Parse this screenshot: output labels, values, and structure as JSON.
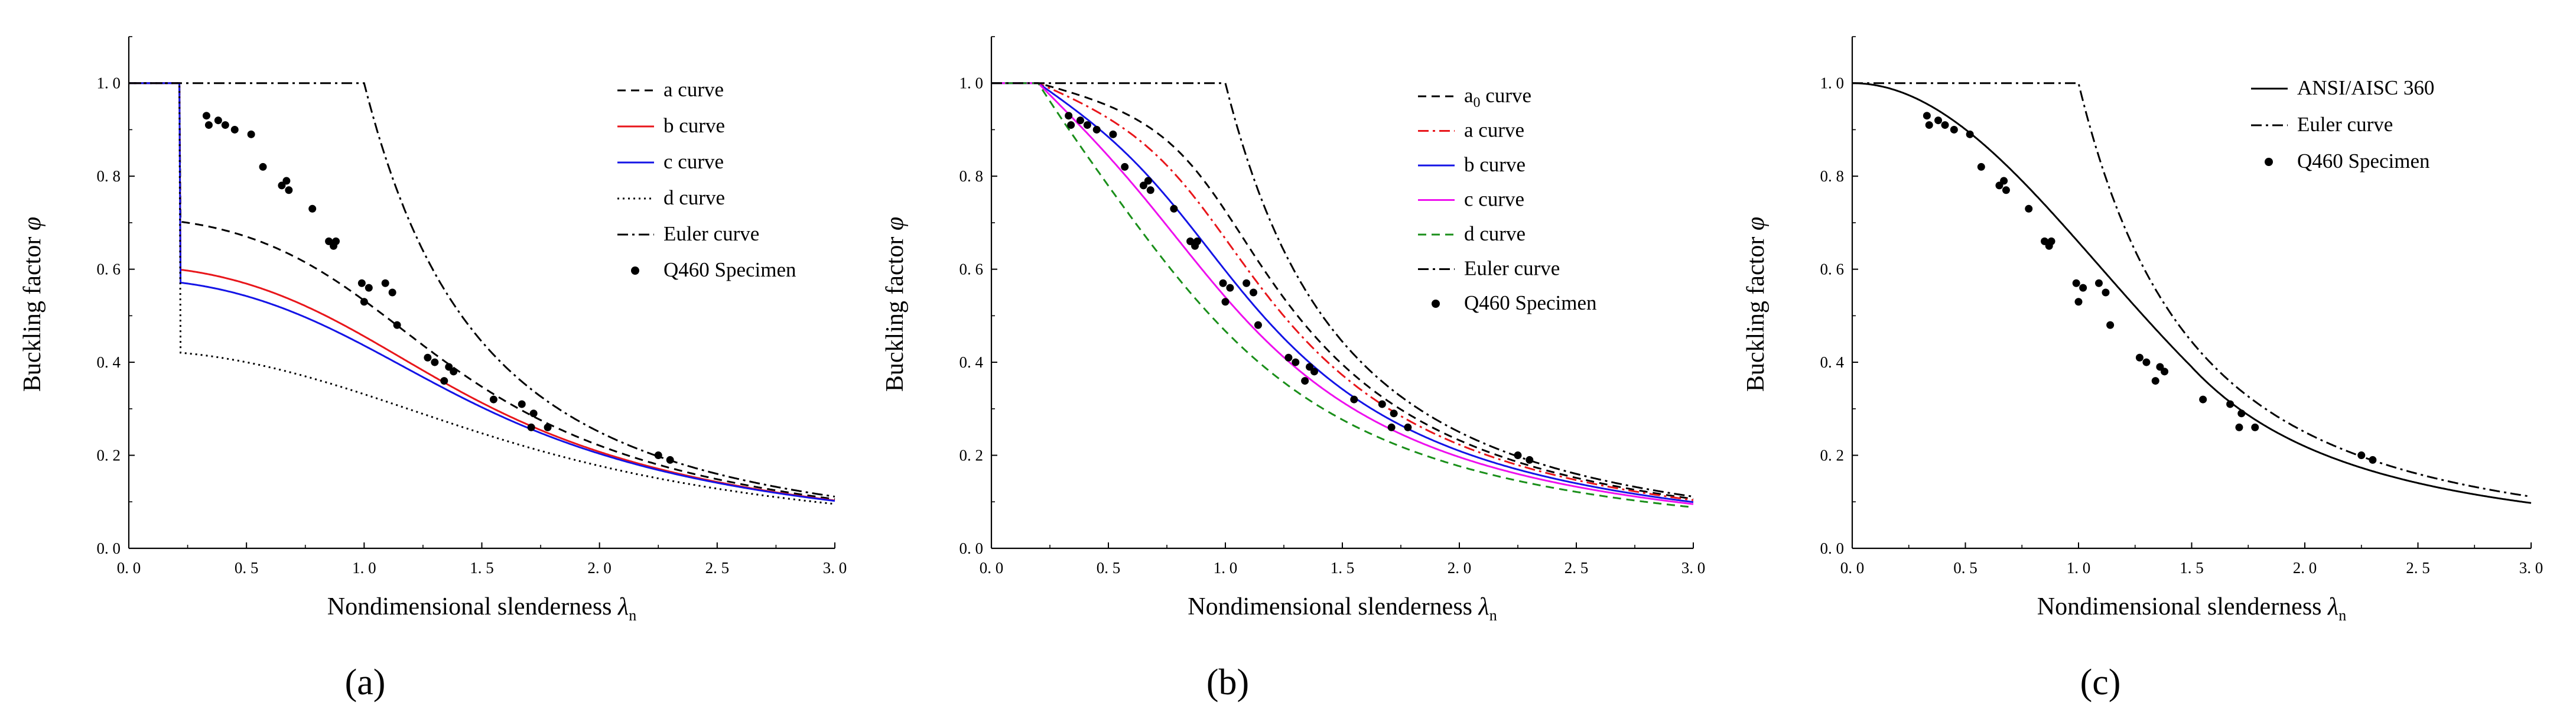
{
  "figure": {
    "panel_labels": [
      "(a)",
      "(b)",
      "(c)"
    ],
    "colors": {
      "black": "#000000",
      "red": "#e8161b",
      "blue": "#1414e6",
      "magenta": "#ee10ee",
      "green": "#1a8f1a"
    }
  },
  "chart_data": [
    {
      "panel": "a",
      "type": "line",
      "xlabel": "Nondimensional slenderness",
      "xlabel_symbol": "λ",
      "xlabel_sub": "n",
      "ylabel": "Buckling factor",
      "ylabel_symbol": "φ",
      "xlim": [
        0,
        3.0
      ],
      "ylim": [
        0,
        1.1
      ],
      "xticks": [
        0,
        0.5,
        1.0,
        1.5,
        2.0,
        2.5,
        3.0
      ],
      "xtick_labels": [
        "0. 0",
        "0. 5",
        "1. 0",
        "1. 5",
        "2. 0",
        "2. 5",
        "3. 0"
      ],
      "yticks": [
        0,
        0.2,
        0.4,
        0.6,
        0.8,
        1.0
      ],
      "ytick_labels": [
        "0. 0",
        "0. 2",
        "0. 4",
        "0. 6",
        "0. 8",
        "1. 0"
      ],
      "legend_position": "top-right",
      "series": [
        {
          "name": "a curve",
          "label": "a curve",
          "kind": "gb",
          "alpha": 0.41,
          "lam0": 0.215,
          "color": "#000000",
          "dash": "14,9"
        },
        {
          "name": "b curve",
          "label": "b curve",
          "kind": "gb",
          "alpha": 0.65,
          "lam0": 0.215,
          "color": "#e8161b",
          "dash": ""
        },
        {
          "name": "c curve",
          "label": "c curve",
          "kind": "gb",
          "alpha": 0.73,
          "lam0": 0.215,
          "color": "#1414e6",
          "dash": ""
        },
        {
          "name": "d curve",
          "label": "d curve",
          "kind": "gb",
          "alpha": 1.35,
          "lam0": 0.215,
          "color": "#000000",
          "dash": "3,6"
        },
        {
          "name": "Euler curve",
          "label": "Euler curve",
          "kind": "euler",
          "color": "#000000",
          "dash": "18,7,4,7"
        },
        {
          "name": "Q460 Specimen",
          "label": "Q460 Specimen",
          "kind": "points",
          "color": "#000000"
        }
      ]
    },
    {
      "panel": "b",
      "type": "line",
      "xlabel": "Nondimensional slenderness",
      "xlabel_symbol": "λ",
      "xlabel_sub": "n",
      "ylabel": "Buckling factor",
      "ylabel_symbol": "φ",
      "xlim": [
        0,
        3.0
      ],
      "ylim": [
        0,
        1.1
      ],
      "xticks": [
        0,
        0.5,
        1.0,
        1.5,
        2.0,
        2.5,
        3.0
      ],
      "xtick_labels": [
        "0. 0",
        "0. 5",
        "1. 0",
        "1. 5",
        "2. 0",
        "2. 5",
        "3. 0"
      ],
      "yticks": [
        0,
        0.2,
        0.4,
        0.6,
        0.8,
        1.0
      ],
      "ytick_labels": [
        "0. 0",
        "0. 2",
        "0. 4",
        "0. 6",
        "0. 8",
        "1. 0"
      ],
      "legend_position": "top-right",
      "series": [
        {
          "name": "a0 curve",
          "label": "a",
          "label_sub": "0",
          "label_rest": " curve",
          "kind": "ec3",
          "alpha": 0.13,
          "color": "#000000",
          "dash": "14,9"
        },
        {
          "name": "a curve",
          "label": "a curve",
          "kind": "ec3",
          "alpha": 0.21,
          "color": "#e8161b",
          "dash": "18,7,4,7"
        },
        {
          "name": "b curve",
          "label": "b curve",
          "kind": "ec3",
          "alpha": 0.34,
          "color": "#1414e6",
          "dash": ""
        },
        {
          "name": "c curve",
          "label": "c curve",
          "kind": "ec3",
          "alpha": 0.49,
          "color": "#ee10ee",
          "dash": ""
        },
        {
          "name": "d curve",
          "label": "d curve",
          "kind": "ec3",
          "alpha": 0.76,
          "color": "#1a8f1a",
          "dash": "14,9"
        },
        {
          "name": "Euler curve",
          "label": "Euler curve",
          "kind": "euler",
          "color": "#000000",
          "dash": "18,7,4,7"
        },
        {
          "name": "Q460 Specimen",
          "label": "Q460 Specimen",
          "kind": "points",
          "color": "#000000"
        }
      ]
    },
    {
      "panel": "c",
      "type": "line",
      "xlabel": "Nondimensional slenderness",
      "xlabel_symbol": "λ",
      "xlabel_sub": "n",
      "ylabel": "Buckling factor",
      "ylabel_symbol": "φ",
      "xlim": [
        0,
        3.0
      ],
      "ylim": [
        0,
        1.1
      ],
      "xticks": [
        0,
        0.5,
        1.0,
        1.5,
        2.0,
        2.5,
        3.0
      ],
      "xtick_labels": [
        "0. 0",
        "0. 5",
        "1. 0",
        "1. 5",
        "2. 0",
        "2. 5",
        "3. 0"
      ],
      "yticks": [
        0,
        0.2,
        0.4,
        0.6,
        0.8,
        1.0
      ],
      "ytick_labels": [
        "0. 0",
        "0. 2",
        "0. 4",
        "0. 6",
        "0. 8",
        "1. 0"
      ],
      "legend_position": "top-right",
      "series": [
        {
          "name": "ANSI/AISC 360",
          "label": "ANSI/AISC 360",
          "kind": "aisc",
          "color": "#000000",
          "dash": ""
        },
        {
          "name": "Euler curve",
          "label": "Euler curve",
          "kind": "euler",
          "color": "#000000",
          "dash": "18,7,4,7"
        },
        {
          "name": "Q460 Specimen",
          "label": "Q460 Specimen",
          "kind": "points",
          "color": "#000000"
        }
      ]
    }
  ],
  "specimens": {
    "x": [
      0.33,
      0.34,
      0.38,
      0.41,
      0.45,
      0.52,
      0.57,
      0.65,
      0.67,
      0.68,
      0.78,
      0.85,
      0.88,
      0.87,
      0.99,
      1.0,
      1.02,
      1.09,
      1.12,
      1.14,
      1.27,
      1.3,
      1.34,
      1.36,
      1.38,
      1.55,
      1.67,
      1.72,
      1.71,
      1.78,
      2.25,
      2.3
    ],
    "y": [
      0.93,
      0.91,
      0.92,
      0.91,
      0.9,
      0.89,
      0.82,
      0.78,
      0.79,
      0.77,
      0.73,
      0.66,
      0.66,
      0.65,
      0.57,
      0.53,
      0.56,
      0.57,
      0.55,
      0.48,
      0.41,
      0.4,
      0.36,
      0.39,
      0.38,
      0.32,
      0.31,
      0.29,
      0.26,
      0.26,
      0.2,
      0.19
    ]
  }
}
